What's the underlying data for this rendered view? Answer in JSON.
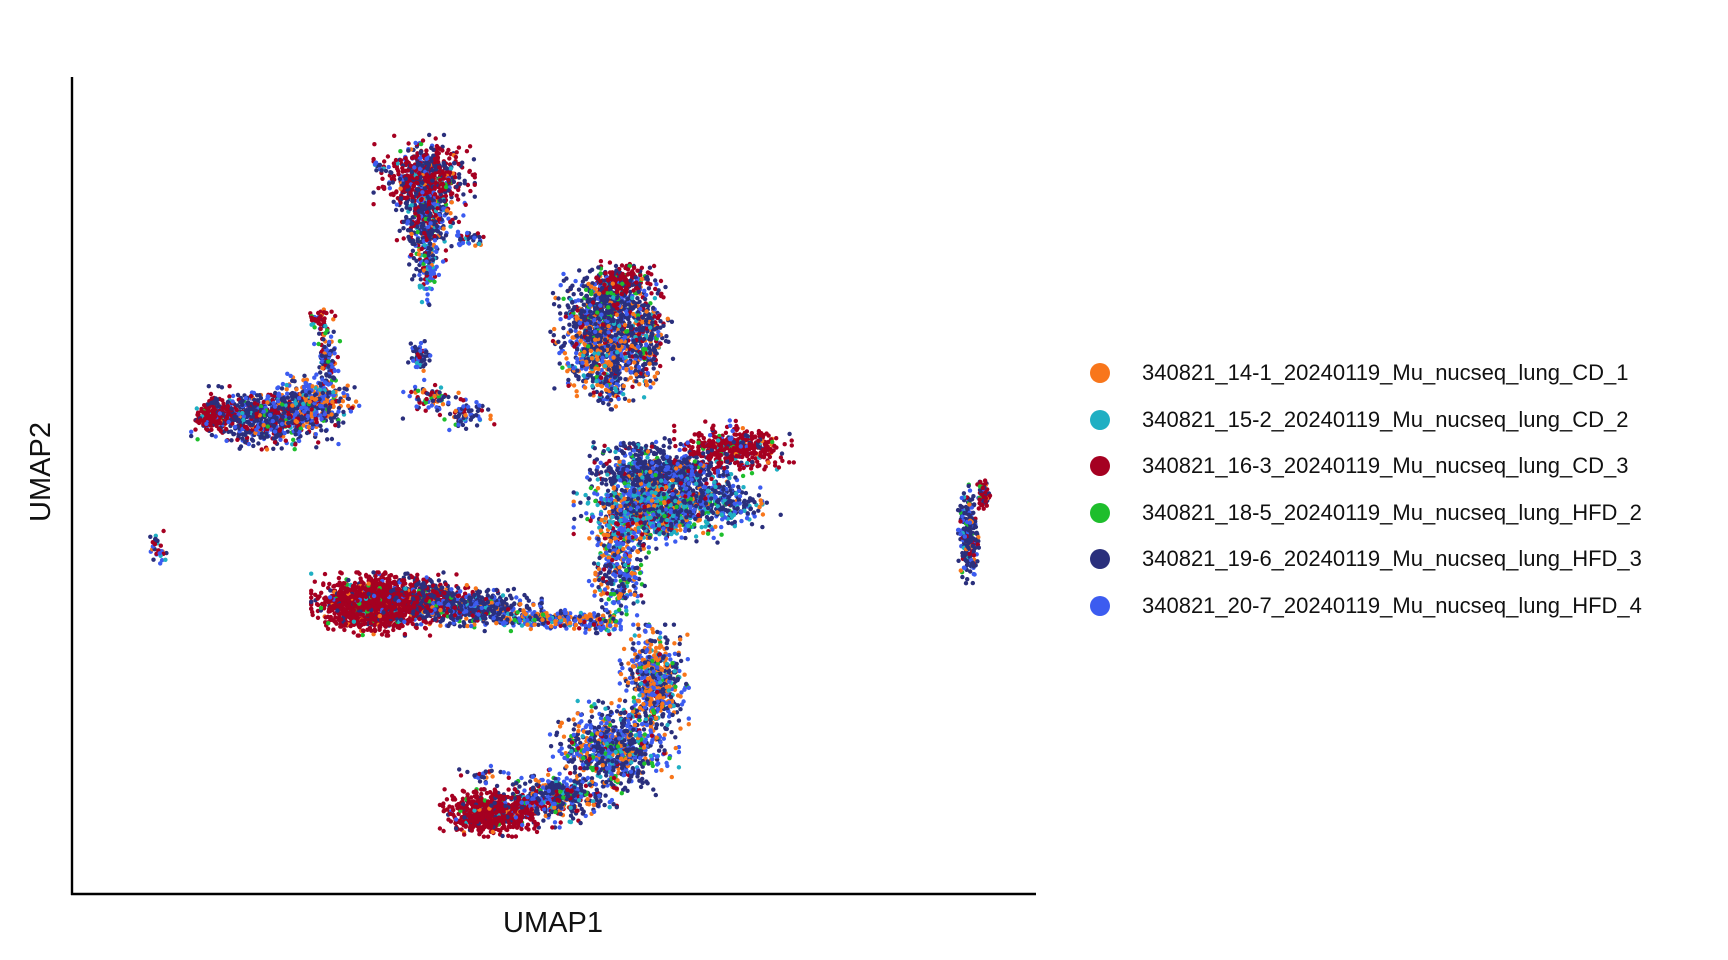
{
  "chart_data": {
    "type": "scatter",
    "xlabel": "UMAP1",
    "ylabel": "UMAP2",
    "xlim": [
      0,
      100
    ],
    "ylim": [
      0,
      100
    ],
    "grid": false,
    "ticks": false,
    "legend_position": "right",
    "series": [
      {
        "name": "340821_14-1_20240119_Mu_nucseq_lung_CD_1",
        "color": "#F8761B"
      },
      {
        "name": "340821_15-2_20240119_Mu_nucseq_lung_CD_2",
        "color": "#1FAFC3"
      },
      {
        "name": "340821_16-3_20240119_Mu_nucseq_lung_CD_3",
        "color": "#A50021"
      },
      {
        "name": "340821_18-5_20240119_Mu_nucseq_lung_HFD_2",
        "color": "#1EBE2C"
      },
      {
        "name": "340821_19-6_20240119_Mu_nucseq_lung_HFD_3",
        "color": "#2A2F7C"
      },
      {
        "name": "340821_20-7_20240119_Mu_nucseq_lung_HFD_4",
        "color": "#3C5CF0"
      }
    ],
    "clusters": [
      {
        "cx": 35.5,
        "cy": 91.0,
        "sx": 2.2,
        "sy": 2.2,
        "n": 650,
        "w": [
          0.03,
          0.02,
          0.55,
          0.02,
          0.28,
          0.1
        ]
      },
      {
        "cx": 35.8,
        "cy": 85.0,
        "sx": 1.3,
        "sy": 2.8,
        "n": 350,
        "w": [
          0.05,
          0.05,
          0.15,
          0.03,
          0.52,
          0.2
        ]
      },
      {
        "cx": 36.0,
        "cy": 79.5,
        "sx": 0.4,
        "sy": 2.0,
        "n": 90,
        "w": [
          0.12,
          0.15,
          0.05,
          0.03,
          0.25,
          0.4
        ]
      },
      {
        "cx": 40.5,
        "cy": 83.0,
        "sx": 0.9,
        "sy": 0.5,
        "n": 40,
        "w": [
          0.05,
          0.05,
          0.1,
          0.02,
          0.55,
          0.23
        ]
      },
      {
        "cx": 30.5,
        "cy": 92.5,
        "sx": 0.3,
        "sy": 0.3,
        "n": 14,
        "w": [
          0.05,
          0.05,
          0.2,
          0.1,
          0.4,
          0.2
        ]
      },
      {
        "cx": 57.7,
        "cy": 77.5,
        "sx": 1.5,
        "sy": 1.0,
        "n": 180,
        "w": [
          0.03,
          0.02,
          0.72,
          0.05,
          0.15,
          0.03
        ]
      },
      {
        "cx": 56.3,
        "cy": 73.5,
        "sx": 2.4,
        "sy": 2.3,
        "n": 600,
        "w": [
          0.05,
          0.03,
          0.1,
          0.04,
          0.62,
          0.16
        ]
      },
      {
        "cx": 56.0,
        "cy": 68.5,
        "sx": 2.4,
        "sy": 2.6,
        "n": 600,
        "w": [
          0.34,
          0.05,
          0.05,
          0.03,
          0.33,
          0.2
        ]
      },
      {
        "cx": 60.5,
        "cy": 70.0,
        "sx": 1.2,
        "sy": 3.0,
        "n": 220,
        "w": [
          0.05,
          0.05,
          0.22,
          0.08,
          0.48,
          0.12
        ]
      },
      {
        "cx": 56.2,
        "cy": 63.5,
        "sx": 0.9,
        "sy": 1.2,
        "n": 90,
        "w": [
          0.1,
          0.05,
          0.1,
          0.03,
          0.52,
          0.2
        ]
      },
      {
        "cx": 12.0,
        "cy": 59.8,
        "sx": 1.0,
        "sy": 0.9,
        "n": 220,
        "w": [
          0.02,
          0.02,
          0.88,
          0.01,
          0.05,
          0.02
        ]
      },
      {
        "cx": 17.5,
        "cy": 59.5,
        "sx": 3.2,
        "sy": 1.6,
        "n": 750,
        "w": [
          0.03,
          0.03,
          0.18,
          0.04,
          0.56,
          0.16
        ]
      },
      {
        "cx": 23.0,
        "cy": 61.5,
        "sx": 2.0,
        "sy": 1.6,
        "n": 300,
        "w": [
          0.26,
          0.06,
          0.05,
          0.05,
          0.26,
          0.32
        ]
      },
      {
        "cx": 24.5,
        "cy": 67.5,
        "sx": 0.6,
        "sy": 2.4,
        "n": 120,
        "w": [
          0.12,
          0.06,
          0.12,
          0.03,
          0.4,
          0.27
        ]
      },
      {
        "cx": 23.5,
        "cy": 72.5,
        "sx": 0.5,
        "sy": 0.5,
        "n": 40,
        "w": [
          0.02,
          0.02,
          0.8,
          0.02,
          0.1,
          0.04
        ]
      },
      {
        "cx": 35.0,
        "cy": 67.5,
        "sx": 0.5,
        "sy": 0.8,
        "n": 55,
        "w": [
          0.05,
          0.05,
          0.1,
          0.03,
          0.5,
          0.27
        ]
      },
      {
        "cx": 36.5,
        "cy": 62.0,
        "sx": 1.5,
        "sy": 1.0,
        "n": 70,
        "w": [
          0.08,
          0.05,
          0.2,
          0.05,
          0.42,
          0.2
        ]
      },
      {
        "cx": 40.3,
        "cy": 60.0,
        "sx": 1.2,
        "sy": 1.0,
        "n": 70,
        "w": [
          0.08,
          0.05,
          0.1,
          0.05,
          0.5,
          0.22
        ]
      },
      {
        "cx": 5.4,
        "cy": 42.0,
        "sx": 0.5,
        "sy": 1.0,
        "n": 35,
        "w": [
          0.02,
          0.05,
          0.3,
          0.03,
          0.2,
          0.4
        ]
      },
      {
        "cx": 29.5,
        "cy": 35.0,
        "sx": 2.6,
        "sy": 1.6,
        "n": 1300,
        "w": [
          0.02,
          0.01,
          0.86,
          0.02,
          0.07,
          0.02
        ]
      },
      {
        "cx": 35.5,
        "cy": 35.5,
        "sx": 2.5,
        "sy": 1.4,
        "n": 500,
        "w": [
          0.03,
          0.02,
          0.45,
          0.03,
          0.4,
          0.07
        ]
      },
      {
        "cx": 41.5,
        "cy": 34.5,
        "sx": 2.8,
        "sy": 1.0,
        "n": 500,
        "w": [
          0.05,
          0.03,
          0.06,
          0.04,
          0.6,
          0.22
        ]
      },
      {
        "cx": 49.5,
        "cy": 33.0,
        "sx": 3.2,
        "sy": 0.6,
        "n": 250,
        "w": [
          0.18,
          0.1,
          0.04,
          0.04,
          0.3,
          0.34
        ]
      },
      {
        "cx": 55.5,
        "cy": 32.5,
        "sx": 1.0,
        "sy": 0.8,
        "n": 60,
        "w": [
          0.3,
          0.1,
          0.04,
          0.05,
          0.25,
          0.26
        ]
      },
      {
        "cx": 57.5,
        "cy": 40.0,
        "sx": 1.3,
        "sy": 3.0,
        "n": 350,
        "w": [
          0.22,
          0.1,
          0.05,
          0.05,
          0.28,
          0.3
        ]
      },
      {
        "cx": 61.5,
        "cy": 48.0,
        "sx": 3.5,
        "sy": 2.2,
        "n": 1100,
        "w": [
          0.14,
          0.22,
          0.04,
          0.05,
          0.3,
          0.25
        ]
      },
      {
        "cx": 62.0,
        "cy": 52.5,
        "sx": 3.0,
        "sy": 1.0,
        "n": 650,
        "w": [
          0.03,
          0.03,
          0.05,
          0.04,
          0.7,
          0.15
        ]
      },
      {
        "cx": 68.5,
        "cy": 48.5,
        "sx": 2.8,
        "sy": 1.3,
        "n": 300,
        "w": [
          0.05,
          0.15,
          0.05,
          0.04,
          0.55,
          0.16
        ]
      },
      {
        "cx": 70.5,
        "cy": 55.5,
        "sx": 2.6,
        "sy": 1.4,
        "n": 450,
        "w": [
          0.03,
          0.02,
          0.78,
          0.03,
          0.1,
          0.04
        ]
      },
      {
        "cx": 59.5,
        "cy": 55.5,
        "sx": 2.0,
        "sy": 0.5,
        "n": 70,
        "w": [
          0.02,
          0.05,
          0.08,
          0.03,
          0.6,
          0.22
        ]
      },
      {
        "cx": 59.5,
        "cy": 45.5,
        "sx": 2.0,
        "sy": 1.0,
        "n": 120,
        "w": [
          0.12,
          0.1,
          0.4,
          0.04,
          0.2,
          0.14
        ]
      },
      {
        "cx": 98.7,
        "cy": 49.5,
        "sx": 0.4,
        "sy": 0.9,
        "n": 60,
        "w": [
          0.02,
          0.02,
          0.75,
          0.02,
          0.15,
          0.04
        ]
      },
      {
        "cx": 97.0,
        "cy": 44.0,
        "sx": 0.45,
        "sy": 2.8,
        "n": 250,
        "w": [
          0.03,
          0.05,
          0.08,
          0.05,
          0.6,
          0.19
        ]
      },
      {
        "cx": 61.5,
        "cy": 25.0,
        "sx": 1.5,
        "sy": 2.8,
        "n": 600,
        "w": [
          0.3,
          0.05,
          0.03,
          0.05,
          0.3,
          0.27
        ]
      },
      {
        "cx": 57.0,
        "cy": 16.0,
        "sx": 2.8,
        "sy": 2.4,
        "n": 800,
        "w": [
          0.15,
          0.06,
          0.03,
          0.06,
          0.42,
          0.28
        ]
      },
      {
        "cx": 50.5,
        "cy": 9.5,
        "sx": 2.6,
        "sy": 1.5,
        "n": 450,
        "w": [
          0.06,
          0.06,
          0.14,
          0.06,
          0.48,
          0.2
        ]
      },
      {
        "cx": 43.0,
        "cy": 7.5,
        "sx": 2.2,
        "sy": 1.2,
        "n": 750,
        "w": [
          0.02,
          0.01,
          0.86,
          0.02,
          0.07,
          0.02
        ]
      },
      {
        "cx": 42.0,
        "cy": 12.5,
        "sx": 1.0,
        "sy": 0.5,
        "n": 25,
        "w": [
          0.05,
          0.1,
          0.1,
          0.05,
          0.45,
          0.25
        ]
      }
    ]
  }
}
